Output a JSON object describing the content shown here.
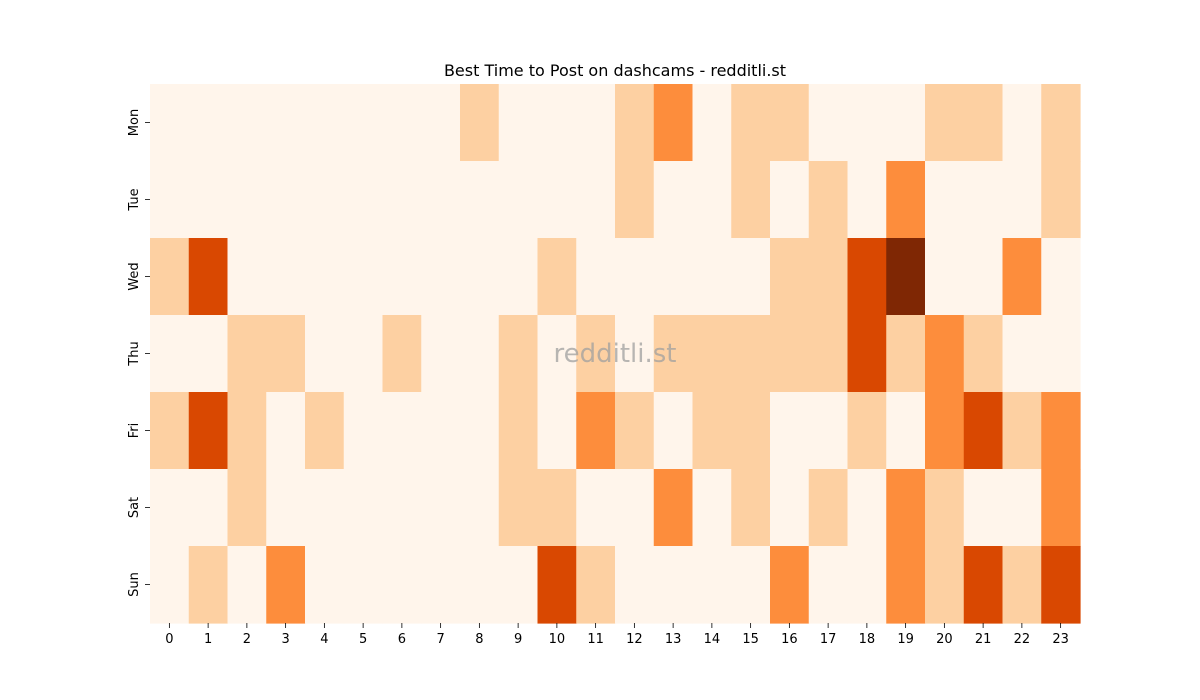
{
  "chart_data": {
    "type": "heatmap",
    "title": "Best Time to Post on dashcams - redditli.st",
    "watermark": "redditli.st",
    "xlabel": "",
    "ylabel": "",
    "x_categories": [
      "0",
      "1",
      "2",
      "3",
      "4",
      "5",
      "6",
      "7",
      "8",
      "9",
      "10",
      "11",
      "12",
      "13",
      "14",
      "15",
      "16",
      "17",
      "18",
      "19",
      "20",
      "21",
      "22",
      "23"
    ],
    "y_categories": [
      "Mon",
      "Tue",
      "Wed",
      "Thu",
      "Fri",
      "Sat",
      "Sun"
    ],
    "values": [
      [
        0,
        0,
        0,
        0,
        0,
        0,
        0,
        0,
        1,
        0,
        0,
        0,
        1,
        2,
        0,
        1,
        1,
        0,
        0,
        0,
        1,
        1,
        0,
        1
      ],
      [
        0,
        0,
        0,
        0,
        0,
        0,
        0,
        0,
        0,
        0,
        0,
        0,
        1,
        0,
        0,
        1,
        0,
        1,
        0,
        2,
        0,
        0,
        0,
        1
      ],
      [
        1,
        3,
        0,
        0,
        0,
        0,
        0,
        0,
        0,
        0,
        1,
        0,
        0,
        0,
        0,
        0,
        1,
        1,
        3,
        4,
        0,
        0,
        2,
        0
      ],
      [
        0,
        0,
        1,
        1,
        0,
        0,
        1,
        0,
        0,
        1,
        0,
        1,
        0,
        1,
        1,
        1,
        1,
        1,
        3,
        1,
        2,
        1,
        0,
        0
      ],
      [
        1,
        3,
        1,
        0,
        1,
        0,
        0,
        0,
        0,
        1,
        0,
        2,
        1,
        0,
        1,
        1,
        0,
        0,
        1,
        0,
        2,
        3,
        1,
        2
      ],
      [
        0,
        0,
        1,
        0,
        0,
        0,
        0,
        0,
        0,
        1,
        1,
        0,
        0,
        2,
        0,
        1,
        0,
        1,
        0,
        2,
        1,
        0,
        0,
        2
      ],
      [
        0,
        1,
        0,
        2,
        0,
        0,
        0,
        0,
        0,
        0,
        3,
        1,
        0,
        0,
        0,
        0,
        2,
        0,
        0,
        2,
        1,
        3,
        1,
        3
      ]
    ],
    "value_range": [
      0,
      4
    ],
    "colormap": [
      "#fff5eb",
      "#fdd0a2",
      "#fd8d3c",
      "#d94801",
      "#7f2704"
    ],
    "grid": false,
    "legend": "none"
  }
}
